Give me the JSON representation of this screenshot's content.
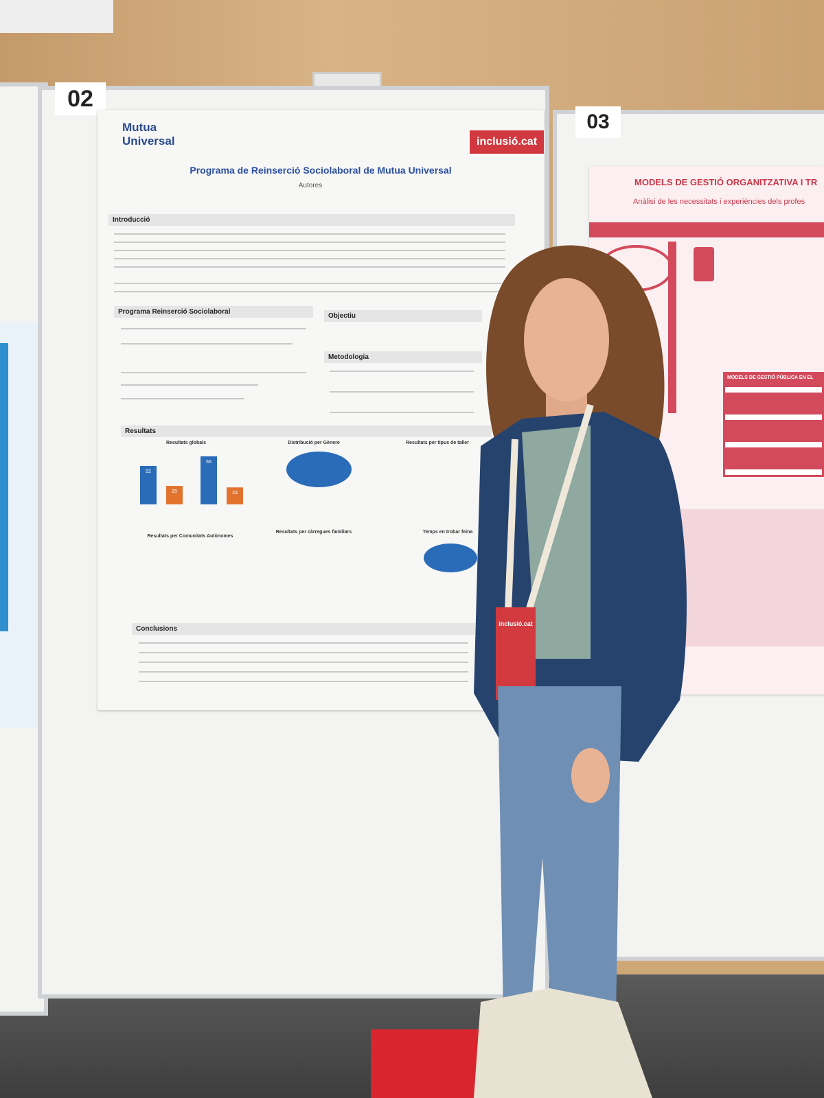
{
  "boards": [
    {
      "number": "02"
    },
    {
      "number": "03"
    }
  ],
  "poster_left": {
    "logo": "Mutua Universal",
    "badge": "inclusió.cat",
    "title": "Programa de Reinserció Sociolaboral de Mutua Universal",
    "authors_heading": "Autores",
    "sections": [
      "Introducció",
      "Programa Reinserció Sociolaboral",
      "Objectiu",
      "Metodologia",
      "Resultats",
      "Conclusions"
    ],
    "charts": [
      {
        "title": "Resultats globals",
        "values": [
          52,
          25,
          65,
          23
        ]
      },
      {
        "title": "Distribució per Gènere"
      },
      {
        "title": "Resultats per tipus de taller"
      },
      {
        "title": "Resultats per Comunitats Autònomes"
      },
      {
        "title": "Resultats per càrregues familiars"
      },
      {
        "title": "Temps en trobar feina"
      }
    ]
  },
  "poster_right": {
    "title": "MODELS DE GESTIÓ ORGANITZATIVA I TR",
    "subtitle": "Anàlisi de les necessitats i experiències dels profes",
    "box_title": "MODELS DE GESTIÓ PÚBLICA EN EL"
  },
  "badge_text": "inclusió.cat"
}
